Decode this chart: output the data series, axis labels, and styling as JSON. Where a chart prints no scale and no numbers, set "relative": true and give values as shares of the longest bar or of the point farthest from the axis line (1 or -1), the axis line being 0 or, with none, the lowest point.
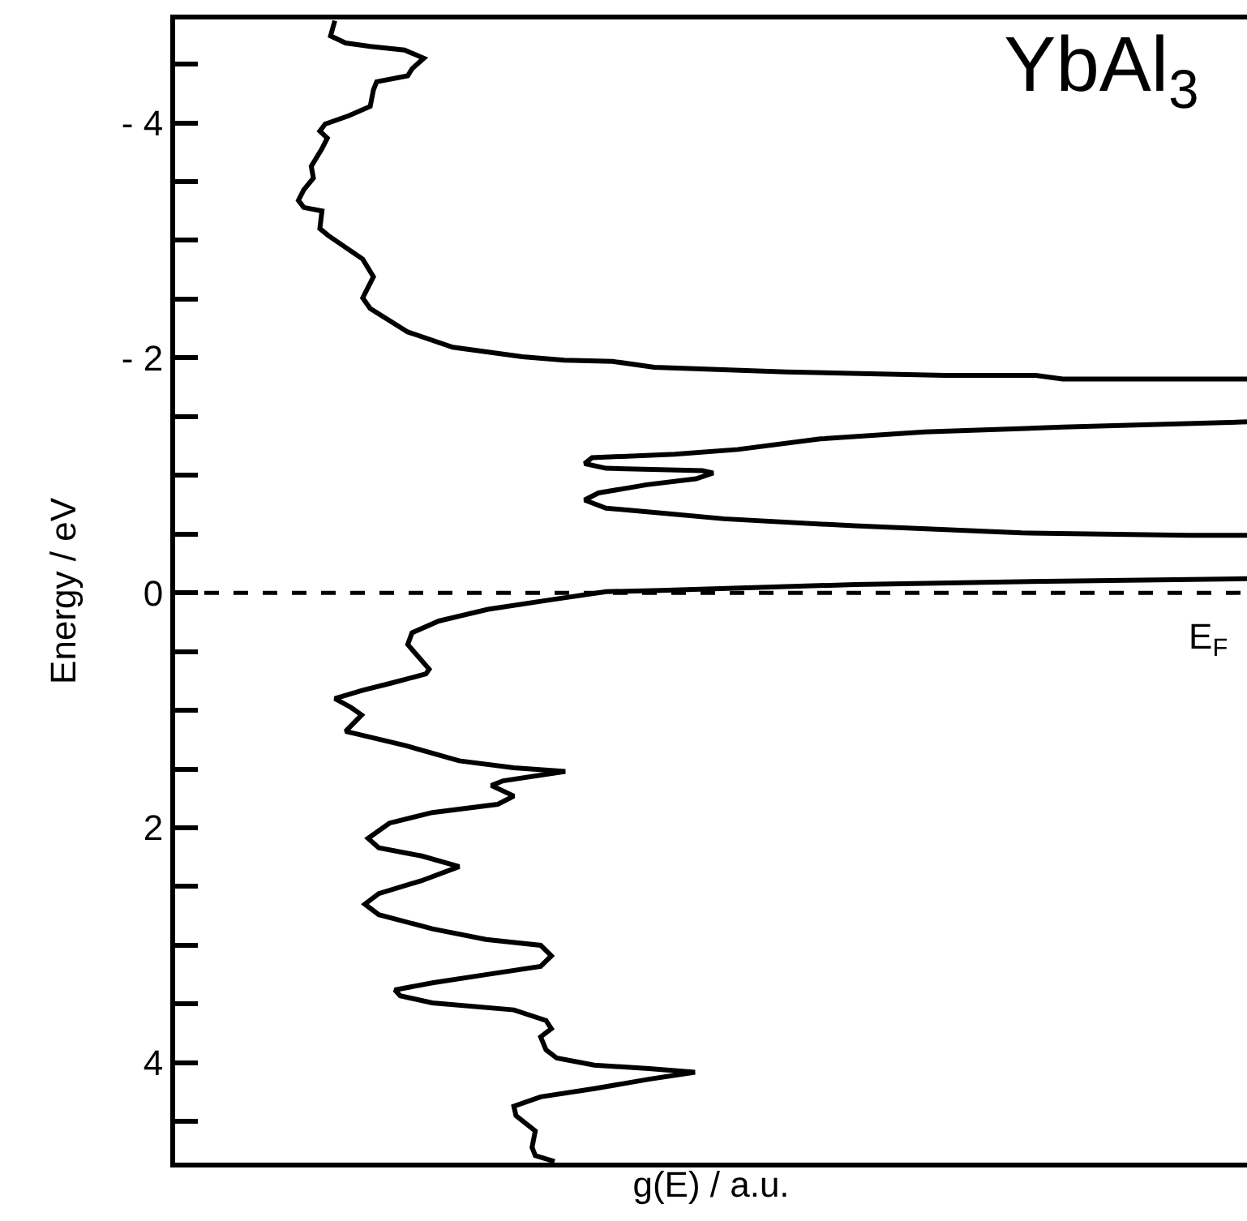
{
  "chart_data": {
    "type": "line",
    "orientation": "horizontal",
    "relative": true,
    "title": "YbAl$_{3}$",
    "xlabel": "g(E) / a.u.",
    "ylabel": "Energy / eV",
    "x": [
      -4.87,
      -4.74,
      -4.68,
      -4.65,
      -4.62,
      -4.55,
      -4.46,
      -4.4,
      -4.35,
      -4.28,
      -4.14,
      -4.06,
      -3.99,
      -3.93,
      -3.87,
      -3.78,
      -3.63,
      -3.53,
      -3.43,
      -3.34,
      -3.28,
      -3.25,
      -3.1,
      -3.04,
      -2.84,
      -2.69,
      -2.51,
      -2.42,
      -2.22,
      -2.09,
      -2.01,
      -1.98,
      -1.97,
      -1.92,
      -1.88,
      -1.85,
      -1.85,
      -1.82,
      -1.82,
      -1.6,
      -1.455,
      -1.41,
      -1.37,
      -1.31,
      -1.22,
      -1.18,
      -1.15,
      -1.1,
      -1.06,
      -1.04,
      -1.02,
      -0.97,
      -0.92,
      -0.85,
      -0.79,
      -0.72,
      -0.68,
      -0.63,
      -0.57,
      -0.51,
      -0.49,
      -0.49,
      -0.3,
      -0.12,
      -0.1,
      -0.07,
      -0.02,
      -0.01,
      0.06,
      0.14,
      0.24,
      0.34,
      0.44,
      0.65,
      0.69,
      0.77,
      0.83,
      0.9,
      0.975,
      1.04,
      1.18,
      1.2,
      1.3,
      1.43,
      1.49,
      1.52,
      1.6,
      1.64,
      1.73,
      1.8,
      1.87,
      1.96,
      2.09,
      2.17,
      2.24,
      2.33,
      2.45,
      2.56,
      2.65,
      2.74,
      2.86,
      2.95,
      3.0,
      3.09,
      3.18,
      3.25,
      3.32,
      3.38,
      3.43,
      3.49,
      3.55,
      3.64,
      3.71,
      3.78,
      3.89,
      3.96,
      4.02,
      4.05,
      4.08,
      4.14,
      4.22,
      4.29,
      4.37,
      4.45,
      4.58,
      4.72,
      4.79,
      4.84
    ],
    "series": [
      {
        "color": "#000000",
        "values": [
          0.149,
          0.145,
          0.159,
          0.182,
          0.214,
          0.232,
          0.221,
          0.217,
          0.188,
          0.185,
          0.182,
          0.162,
          0.14,
          0.135,
          0.142,
          0.137,
          0.127,
          0.129,
          0.12,
          0.115,
          0.12,
          0.137,
          0.135,
          0.143,
          0.175,
          0.185,
          0.175,
          0.182,
          0.217,
          0.259,
          0.324,
          0.363,
          0.408,
          0.447,
          0.57,
          0.718,
          0.803,
          0.828,
          1.0,
          null,
          1.0,
          0.828,
          0.699,
          0.602,
          0.525,
          0.466,
          0.389,
          0.382,
          0.402,
          0.492,
          0.502,
          0.486,
          0.44,
          0.395,
          0.382,
          0.402,
          0.453,
          0.512,
          0.634,
          0.79,
          0.945,
          1.0,
          null,
          1.0,
          0.828,
          0.634,
          0.453,
          0.402,
          0.35,
          0.292,
          0.246,
          0.221,
          0.217,
          0.237,
          0.234,
          0.201,
          0.175,
          0.149,
          0.164,
          0.174,
          0.159,
          0.169,
          0.215,
          0.265,
          0.316,
          0.364,
          0.306,
          0.295,
          0.316,
          0.301,
          0.24,
          0.2,
          0.18,
          0.19,
          0.23,
          0.265,
          0.23,
          0.19,
          0.177,
          0.19,
          0.24,
          0.29,
          0.341,
          0.351,
          0.341,
          0.29,
          0.24,
          0.205,
          0.21,
          0.24,
          0.316,
          0.346,
          0.351,
          0.341,
          0.346,
          0.356,
          0.391,
          0.442,
          0.485,
          0.442,
          0.391,
          0.341,
          0.316,
          0.318,
          0.336,
          0.333,
          0.336,
          0.354
        ]
      }
    ],
    "ylim": [
      4.85,
      -4.88
    ],
    "yticks": [
      {
        "value": -4.5,
        "label": null
      },
      {
        "value": -4,
        "label": "- 4"
      },
      {
        "value": -3.5,
        "label": null
      },
      {
        "value": -3,
        "label": null
      },
      {
        "value": -2.5,
        "label": null
      },
      {
        "value": -2,
        "label": "- 2"
      },
      {
        "value": -1.5,
        "label": null
      },
      {
        "value": -1,
        "label": null
      },
      {
        "value": -0.5,
        "label": null
      },
      0,
      {
        "value": 0.5,
        "label": null
      },
      {
        "value": 1,
        "label": null
      },
      {
        "value": 1.5,
        "label": null
      },
      2,
      {
        "value": 2.5,
        "label": null
      },
      {
        "value": 3,
        "label": null
      },
      {
        "value": 3.5,
        "label": null
      },
      4,
      {
        "value": 4.5,
        "label": null
      }
    ],
    "ref_lines": [
      {
        "axis": "y",
        "value": 0,
        "label": "E$_{F}$",
        "color": "#000000",
        "line_style": "dashed"
      }
    ],
    "grid": false,
    "marker": "none",
    "line_style": "solid"
  }
}
